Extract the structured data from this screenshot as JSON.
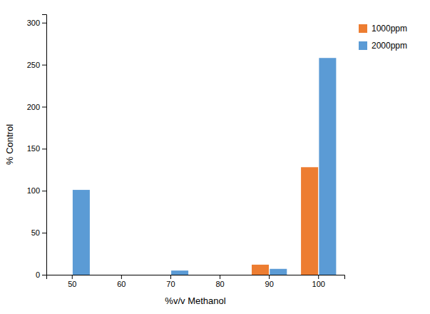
{
  "chart_data": {
    "type": "bar",
    "categories": [
      50,
      60,
      70,
      80,
      90,
      100
    ],
    "series": [
      {
        "name": "1000ppm",
        "color": "#ED7D31",
        "values": [
          0,
          0,
          0,
          0,
          12,
          128
        ]
      },
      {
        "name": "2000ppm",
        "color": "#5B9BD5",
        "values": [
          101,
          0,
          5,
          0,
          7,
          258
        ]
      }
    ],
    "xlabel": "%v/v Methanol",
    "ylabel": "% Control",
    "ylim": [
      0,
      310
    ],
    "yticks": [
      0,
      50,
      100,
      150,
      200,
      250,
      300
    ],
    "grid": false,
    "legend": "right"
  }
}
